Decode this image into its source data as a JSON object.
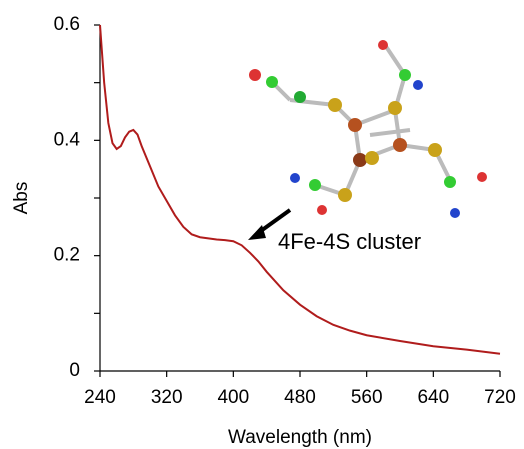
{
  "chart_data": {
    "type": "line",
    "x_label": "Wavelength (nm)",
    "y_label": "Abs",
    "annotation": "4Fe-4S cluster",
    "x": [
      240,
      245,
      250,
      255,
      260,
      265,
      270,
      275,
      280,
      285,
      290,
      300,
      310,
      320,
      330,
      340,
      350,
      360,
      370,
      380,
      390,
      400,
      410,
      420,
      430,
      440,
      460,
      480,
      500,
      520,
      540,
      560,
      600,
      640,
      680,
      720
    ],
    "values": [
      0.6,
      0.5,
      0.43,
      0.395,
      0.385,
      0.39,
      0.405,
      0.415,
      0.418,
      0.41,
      0.39,
      0.355,
      0.32,
      0.295,
      0.27,
      0.25,
      0.237,
      0.232,
      0.23,
      0.228,
      0.227,
      0.225,
      0.218,
      0.205,
      0.19,
      0.172,
      0.14,
      0.115,
      0.095,
      0.08,
      0.07,
      0.062,
      0.052,
      0.043,
      0.037,
      0.03
    ],
    "color": "#b01c1c",
    "xlim": [
      240,
      720
    ],
    "xticks": [
      240,
      320,
      400,
      480,
      560,
      640,
      720
    ],
    "ylim": [
      0,
      0.6
    ],
    "yticks": [
      0,
      0.2,
      0.4,
      0.6
    ],
    "yminor_ticks": [
      0.1,
      0.3,
      0.5
    ]
  }
}
